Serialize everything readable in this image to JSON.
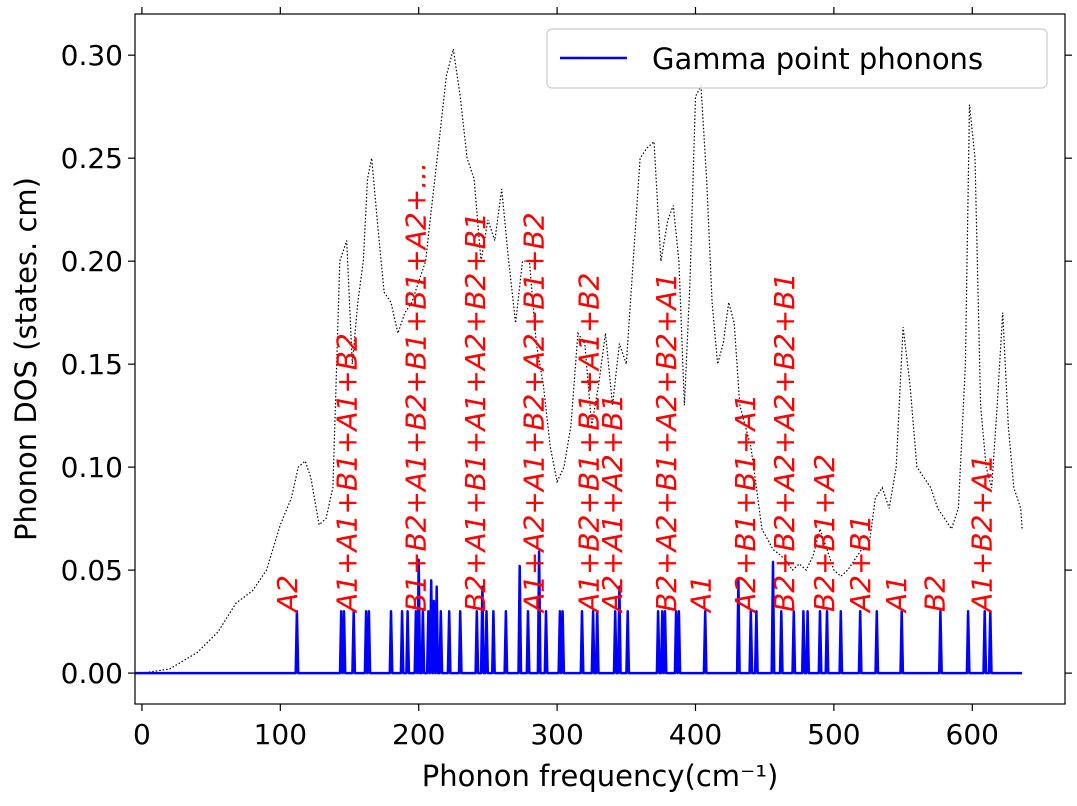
{
  "chart_data": {
    "type": "line",
    "xlabel": "Phonon frequency(cm⁻¹)",
    "ylabel": "Phonon DOS (states. cm)",
    "xlim": [
      -5,
      667
    ],
    "ylim": [
      -0.015,
      0.32
    ],
    "x_ticks": [
      0,
      100,
      200,
      300,
      400,
      500,
      600
    ],
    "y_ticks": [
      0.0,
      0.05,
      0.1,
      0.15,
      0.2,
      0.25,
      0.3
    ],
    "x_tick_labels": [
      "0",
      "100",
      "200",
      "300",
      "400",
      "500",
      "600"
    ],
    "y_tick_labels": [
      "0.00",
      "0.05",
      "0.10",
      "0.15",
      "0.20",
      "0.25",
      "0.30"
    ],
    "grid": false,
    "legend": {
      "position": "top-right",
      "entries": [
        "Gamma point phonons"
      ]
    },
    "series": [
      {
        "name": "Gamma point phonons",
        "color": "#0000ff",
        "style": "solid",
        "x_range": [
          -5,
          636
        ],
        "peak_width": 0.9,
        "peaks": [
          [
            112,
            0.03
          ],
          [
            144,
            0.03
          ],
          [
            146,
            0.03
          ],
          [
            153,
            0.03
          ],
          [
            162,
            0.03
          ],
          [
            164,
            0.03
          ],
          [
            180,
            0.03
          ],
          [
            188,
            0.03
          ],
          [
            192,
            0.03
          ],
          [
            198,
            0.03
          ],
          [
            200,
            0.055
          ],
          [
            203,
            0.03
          ],
          [
            207,
            0.03
          ],
          [
            209,
            0.045
          ],
          [
            211,
            0.035
          ],
          [
            213,
            0.042
          ],
          [
            216,
            0.03
          ],
          [
            222,
            0.03
          ],
          [
            230,
            0.03
          ],
          [
            242,
            0.03
          ],
          [
            246,
            0.042
          ],
          [
            249,
            0.03
          ],
          [
            254,
            0.03
          ],
          [
            263,
            0.03
          ],
          [
            273,
            0.052
          ],
          [
            279,
            0.03
          ],
          [
            287,
            0.059
          ],
          [
            292,
            0.03
          ],
          [
            302,
            0.03
          ],
          [
            304,
            0.03
          ],
          [
            318,
            0.03
          ],
          [
            326,
            0.03
          ],
          [
            329,
            0.03
          ],
          [
            342,
            0.03
          ],
          [
            345,
            0.042
          ],
          [
            351,
            0.03
          ],
          [
            373,
            0.03
          ],
          [
            376,
            0.03
          ],
          [
            378,
            0.03
          ],
          [
            386,
            0.03
          ],
          [
            388,
            0.03
          ],
          [
            407,
            0.03
          ],
          [
            431,
            0.045
          ],
          [
            440,
            0.03
          ],
          [
            444,
            0.03
          ],
          [
            456,
            0.054
          ],
          [
            462,
            0.03
          ],
          [
            471,
            0.03
          ],
          [
            478,
            0.03
          ],
          [
            481,
            0.03
          ],
          [
            490,
            0.03
          ],
          [
            495,
            0.03
          ],
          [
            505,
            0.03
          ],
          [
            519,
            0.03
          ],
          [
            531,
            0.03
          ],
          [
            549,
            0.03
          ],
          [
            577,
            0.03
          ],
          [
            597,
            0.03
          ],
          [
            609,
            0.03
          ],
          [
            613,
            0.03
          ]
        ]
      },
      {
        "name": "",
        "color": "#000000",
        "style": "dotted",
        "x": [
          0,
          20,
          40,
          55,
          68,
          80,
          90,
          100,
          108,
          113,
          118,
          122,
          128,
          133,
          138,
          143,
          148,
          152,
          156,
          160,
          163,
          166,
          170,
          175,
          180,
          185,
          190,
          195,
          200,
          205,
          210,
          215,
          220,
          225,
          230,
          235,
          240,
          245,
          250,
          255,
          260,
          265,
          270,
          275,
          280,
          285,
          290,
          295,
          300,
          305,
          310,
          315,
          320,
          325,
          330,
          335,
          340,
          345,
          350,
          355,
          360,
          365,
          370,
          375,
          380,
          384,
          388,
          392,
          396,
          400,
          404,
          408,
          412,
          416,
          420,
          424,
          428,
          432,
          436,
          440,
          444,
          448,
          452,
          456,
          460,
          465,
          470,
          475,
          480,
          485,
          490,
          495,
          500,
          505,
          510,
          515,
          520,
          525,
          530,
          535,
          540,
          545,
          550,
          555,
          560,
          565,
          570,
          575,
          580,
          585,
          590,
          595,
          598,
          602,
          606,
          610,
          614,
          618,
          622,
          626,
          630,
          635,
          636
        ],
        "y": [
          0.0,
          0.002,
          0.01,
          0.02,
          0.034,
          0.04,
          0.05,
          0.072,
          0.085,
          0.1,
          0.103,
          0.095,
          0.072,
          0.075,
          0.09,
          0.2,
          0.21,
          0.15,
          0.18,
          0.2,
          0.24,
          0.25,
          0.22,
          0.185,
          0.18,
          0.165,
          0.175,
          0.18,
          0.19,
          0.2,
          0.23,
          0.26,
          0.29,
          0.303,
          0.28,
          0.25,
          0.24,
          0.2,
          0.22,
          0.21,
          0.235,
          0.2,
          0.17,
          0.2,
          0.2,
          0.16,
          0.14,
          0.11,
          0.093,
          0.1,
          0.12,
          0.165,
          0.16,
          0.12,
          0.14,
          0.165,
          0.13,
          0.16,
          0.15,
          0.2,
          0.25,
          0.255,
          0.258,
          0.2,
          0.22,
          0.227,
          0.2,
          0.13,
          0.19,
          0.28,
          0.285,
          0.24,
          0.18,
          0.15,
          0.16,
          0.18,
          0.17,
          0.13,
          0.12,
          0.11,
          0.09,
          0.07,
          0.065,
          0.06,
          0.058,
          0.055,
          0.05,
          0.053,
          0.05,
          0.057,
          0.07,
          0.06,
          0.05,
          0.047,
          0.05,
          0.055,
          0.06,
          0.06,
          0.085,
          0.09,
          0.08,
          0.1,
          0.168,
          0.14,
          0.1,
          0.095,
          0.09,
          0.08,
          0.075,
          0.07,
          0.08,
          0.15,
          0.276,
          0.25,
          0.13,
          0.1,
          0.09,
          0.13,
          0.175,
          0.12,
          0.09,
          0.08,
          0.07
        ]
      }
    ],
    "annotations": [
      {
        "x": 112,
        "text": "A2"
      },
      {
        "x": 155,
        "text": "A1+A1+B1+A1+B2"
      },
      {
        "x": 205,
        "text": "B1+B2+A1+B2+B1+B1+A2+..."
      },
      {
        "x": 248,
        "text": "B2+A1+B1+A1+A2+B2+B1"
      },
      {
        "x": 290,
        "text": "A1+A2+A1+B2+A2+B1+B2"
      },
      {
        "x": 330,
        "text": "A1+B2+B1+B1+A1+B2"
      },
      {
        "x": 347,
        "text": "A2+A1+A2+B1"
      },
      {
        "x": 386,
        "text": "B2+A2+B1+A2+B2+A1"
      },
      {
        "x": 411,
        "text": "A1"
      },
      {
        "x": 443,
        "text": "A2+B1+B1+A1"
      },
      {
        "x": 471,
        "text": "B2+B2+A2+A2+B2+B1"
      },
      {
        "x": 500,
        "text": "B2+B1+A2"
      },
      {
        "x": 526,
        "text": "A2+B1"
      },
      {
        "x": 552,
        "text": "A1"
      },
      {
        "x": 580,
        "text": "B2"
      },
      {
        "x": 614,
        "text": "A1+B2+A1"
      }
    ]
  }
}
